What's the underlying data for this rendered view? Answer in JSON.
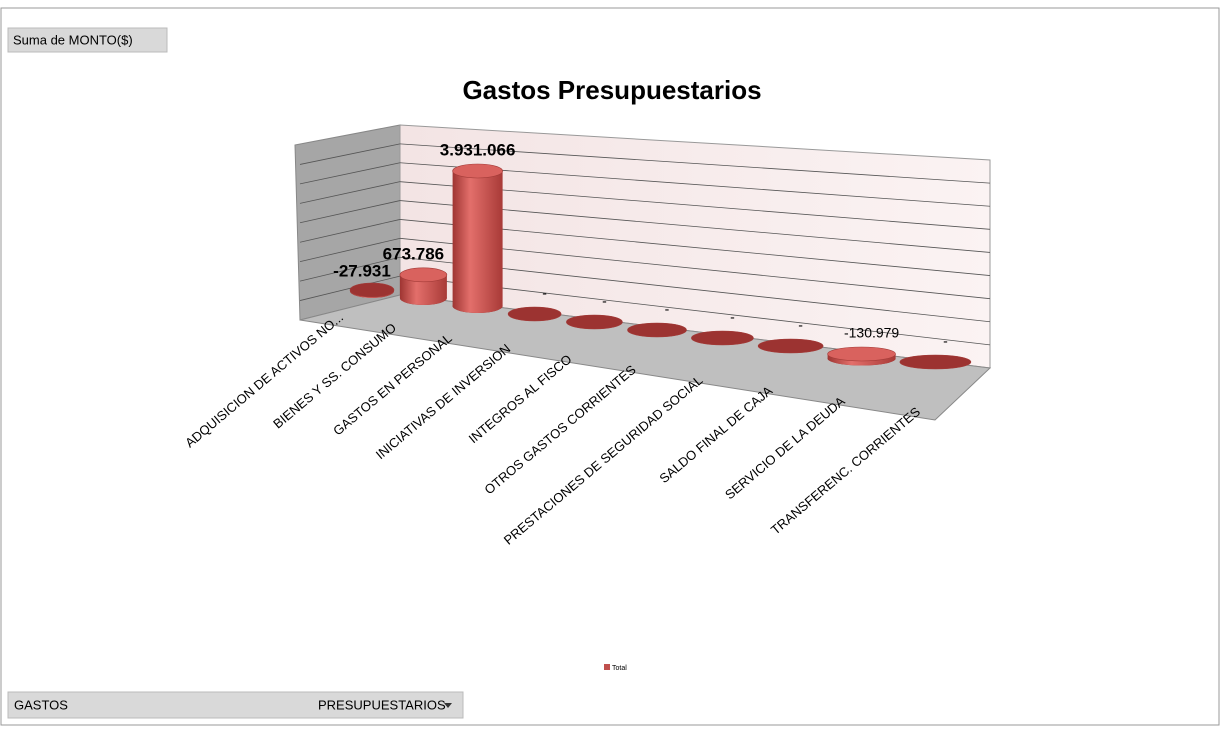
{
  "chart_data": {
    "type": "bar3d",
    "title": "Gastos Presupuestarios",
    "value_field": "Suma de MONTO($)",
    "axis_field": [
      "GASTOS",
      "PRESUPUESTARIOS"
    ],
    "categories": [
      "ADQUISICION DE ACTIVOS NO...",
      "BIENES  Y SS. CONSUMO",
      "GASTOS EN PERSONAL",
      "INICIATIVAS DE INVERSION",
      "INTEGROS AL FISCO",
      "OTROS GASTOS CORRIENTES",
      "PRESTACIONES DE SEGURIDAD SOCIAL",
      "SALDO FINAL DE CAJA",
      "SERVICIO DE LA DEUDA",
      "TRANSFERENC. CORRIENTES"
    ],
    "series": [
      {
        "name": "Total",
        "color": "#c0504d",
        "values": [
          -27931,
          673786,
          3931066,
          0,
          0,
          0,
          0,
          0,
          -130979,
          0
        ],
        "value_labels": [
          "-27.931",
          "673.786",
          "3.931.066",
          "-",
          "-",
          "-",
          "-",
          "-",
          "-130.979",
          "-"
        ]
      }
    ],
    "legend": "bottom"
  }
}
